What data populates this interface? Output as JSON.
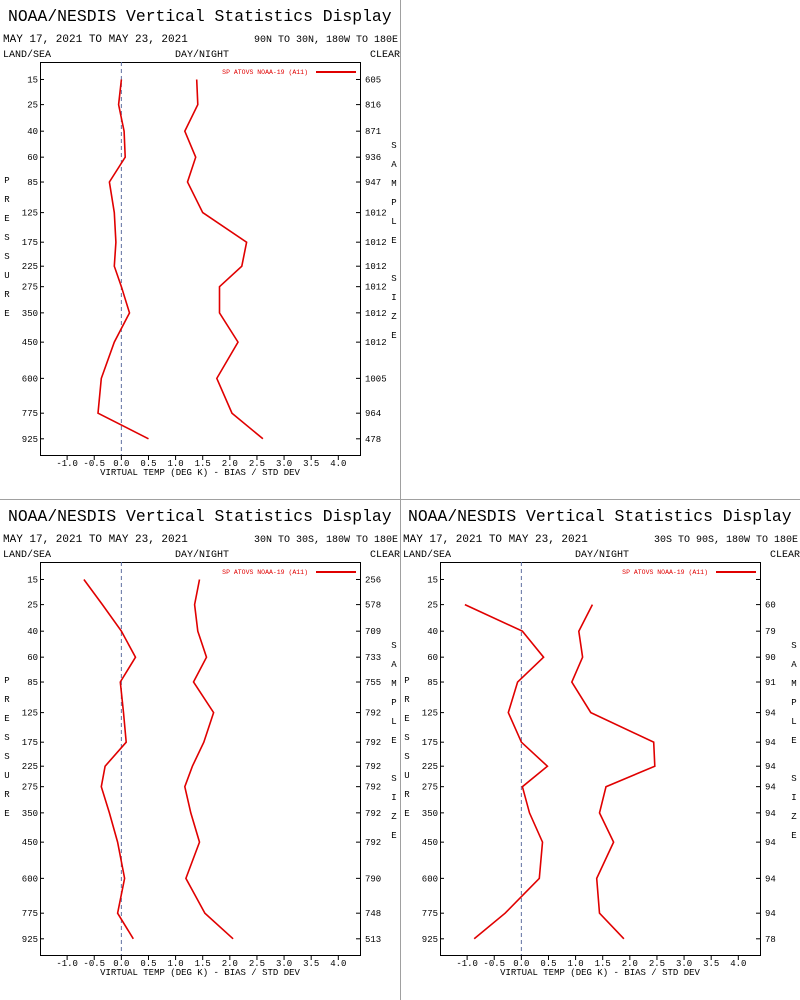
{
  "chart_data": [
    {
      "type": "line",
      "title": "NOAA/NESDIS Vertical Statistics Display",
      "subtitle": "MAY 17, 2021 TO MAY 23, 2021",
      "region": "90N TO 30N, 180W TO 180E",
      "land_sea": "LAND/SEA",
      "day_night": "DAY/NIGHT",
      "cloud": "CLEAR",
      "ylabel": "PRESSURE",
      "y2label": "SAMPLE SIZE",
      "xlabel": "VIRTUAL TEMP (DEG K) - BIAS / STD DEV",
      "xlim": [
        -1.5,
        4.4
      ],
      "xticks": [
        {
          "value": -1,
          "label": "-1.0"
        },
        -0.5,
        {
          "value": 0,
          "label": "0.0"
        },
        0.5,
        {
          "value": 1,
          "label": "1.0"
        },
        1.5,
        {
          "value": 2,
          "label": "2.0"
        },
        2.5,
        {
          "value": 3,
          "label": "3.0"
        },
        3.5,
        {
          "value": 4,
          "label": "4.0"
        }
      ],
      "ylim": [
        10,
        1030
      ],
      "yscale": "power",
      "yexponent": 0.286,
      "yinverted": true,
      "zero_line": true,
      "yticks": [
        15,
        25,
        40,
        60,
        85,
        125,
        175,
        225,
        275,
        350,
        450,
        600,
        775,
        925
      ],
      "levels": [
        15,
        25,
        40,
        60,
        85,
        125,
        175,
        225,
        275,
        350,
        450,
        600,
        775,
        925
      ],
      "sample_size": [
        605,
        816,
        871,
        936,
        947,
        1012,
        1012,
        1012,
        1012,
        1012,
        1012,
        1005,
        964,
        478
      ],
      "series": [
        {
          "name": "SP ATOVS NOAA-19 (A11)",
          "color": "#e00000",
          "bias": [
            0.0,
            -0.05,
            0.05,
            0.07,
            -0.22,
            -0.13,
            -0.1,
            -0.13,
            0.0,
            0.15,
            -0.13,
            -0.37,
            -0.43,
            0.5
          ],
          "std_dev": [
            1.39,
            1.41,
            1.17,
            1.37,
            1.22,
            1.5,
            2.31,
            2.22,
            1.81,
            1.81,
            2.15,
            1.76,
            2.04,
            2.61
          ]
        }
      ]
    },
    {
      "type": "line",
      "title": "NOAA/NESDIS Vertical Statistics Display",
      "subtitle": "MAY 17, 2021 TO MAY 23, 2021",
      "region": "30N TO 30S, 180W TO 180E",
      "land_sea": "LAND/SEA",
      "day_night": "DAY/NIGHT",
      "cloud": "CLEAR",
      "ylabel": "PRESSURE",
      "y2label": "SAMPLE SIZE",
      "xlabel": "VIRTUAL TEMP (DEG K) - BIAS / STD DEV",
      "xlim": [
        -1.5,
        4.4
      ],
      "xticks": [
        {
          "value": -1,
          "label": "-1.0"
        },
        -0.5,
        {
          "value": 0,
          "label": "0.0"
        },
        0.5,
        {
          "value": 1,
          "label": "1.0"
        },
        1.5,
        {
          "value": 2,
          "label": "2.0"
        },
        2.5,
        {
          "value": 3,
          "label": "3.0"
        },
        3.5,
        {
          "value": 4,
          "label": "4.0"
        }
      ],
      "ylim": [
        10,
        1030
      ],
      "yscale": "power",
      "yexponent": 0.286,
      "yinverted": true,
      "zero_line": true,
      "yticks": [
        15,
        25,
        40,
        60,
        85,
        125,
        175,
        225,
        275,
        350,
        450,
        600,
        775,
        925
      ],
      "levels": [
        15,
        25,
        40,
        60,
        85,
        125,
        175,
        225,
        275,
        350,
        450,
        600,
        775,
        925
      ],
      "sample_size": [
        256,
        578,
        709,
        733,
        755,
        792,
        792,
        792,
        792,
        792,
        792,
        790,
        748,
        513
      ],
      "series": [
        {
          "name": "SP ATOVS NOAA-19 (A11)",
          "color": "#e00000",
          "bias": [
            -0.69,
            -0.35,
            0.0,
            0.26,
            -0.02,
            0.04,
            0.09,
            -0.3,
            -0.37,
            -0.22,
            -0.07,
            0.06,
            -0.07,
            0.22
          ],
          "std_dev": [
            1.44,
            1.35,
            1.41,
            1.57,
            1.33,
            1.7,
            1.52,
            1.31,
            1.17,
            1.28,
            1.44,
            1.19,
            1.54,
            2.06
          ]
        }
      ]
    },
    {
      "type": "line",
      "title": "NOAA/NESDIS Vertical Statistics Display",
      "subtitle": "MAY 17, 2021 TO MAY 23, 2021",
      "region": "30S TO 90S, 180W TO 180E",
      "land_sea": "LAND/SEA",
      "day_night": "DAY/NIGHT",
      "cloud": "CLEAR",
      "ylabel": "PRESSURE",
      "y2label": "SAMPLE SIZE",
      "xlabel": "VIRTUAL TEMP (DEG K) - BIAS / STD DEV",
      "xlim": [
        -1.5,
        4.4
      ],
      "xticks": [
        {
          "value": -1,
          "label": "-1.0"
        },
        -0.5,
        {
          "value": 0,
          "label": "0.0"
        },
        0.5,
        {
          "value": 1,
          "label": "1.0"
        },
        1.5,
        {
          "value": 2,
          "label": "2.0"
        },
        2.5,
        {
          "value": 3,
          "label": "3.0"
        },
        3.5,
        {
          "value": 4,
          "label": "4.0"
        }
      ],
      "ylim": [
        10,
        1030
      ],
      "yscale": "power",
      "yexponent": 0.286,
      "yinverted": true,
      "zero_line": true,
      "yticks": [
        15,
        25,
        40,
        60,
        85,
        125,
        175,
        225,
        275,
        350,
        450,
        600,
        775,
        925
      ],
      "levels": [
        15,
        25,
        40,
        60,
        85,
        125,
        175,
        225,
        275,
        350,
        450,
        600,
        775,
        925
      ],
      "sample_size": [
        null,
        60,
        79,
        90,
        91,
        94,
        94,
        94,
        94,
        94,
        94,
        94,
        94,
        78
      ],
      "series": [
        {
          "name": "SP ATOVS NOAA-19 (A11)",
          "color": "#e00000",
          "bias": [
            null,
            -1.04,
            0.02,
            0.41,
            -0.07,
            -0.24,
            0.0,
            0.48,
            0.02,
            0.15,
            0.39,
            0.33,
            -0.3,
            -0.87
          ],
          "std_dev": [
            null,
            1.31,
            1.06,
            1.13,
            0.93,
            1.28,
            2.44,
            2.46,
            1.56,
            1.44,
            1.7,
            1.39,
            1.44,
            1.89
          ]
        }
      ]
    }
  ]
}
